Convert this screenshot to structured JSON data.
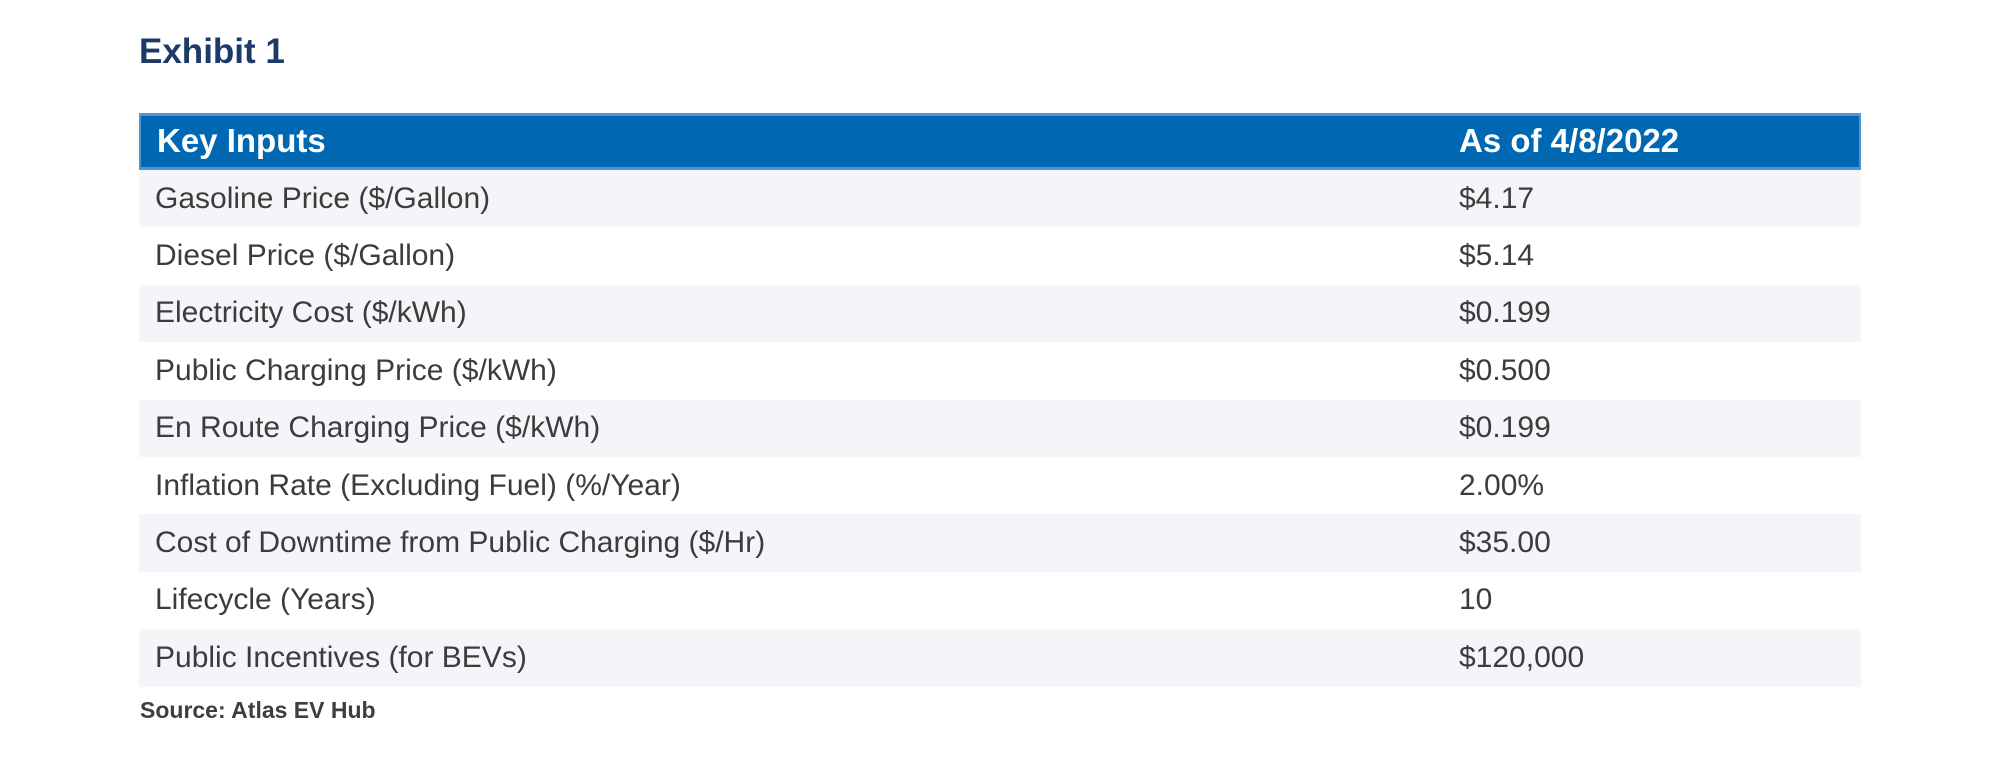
{
  "chart_data": {
    "type": "table",
    "title": "Exhibit 1",
    "columns": [
      "Key Inputs",
      "As of 4/8/2022"
    ],
    "rows": [
      [
        "Gasoline Price ($/Gallon)",
        "$4.17"
      ],
      [
        "Diesel Price ($/Gallon)",
        "$5.14"
      ],
      [
        "Electricity Cost ($/kWh)",
        "$0.199"
      ],
      [
        "Public Charging Price ($/kWh)",
        "$0.500"
      ],
      [
        "En Route Charging Price ($/kWh)",
        "$0.199"
      ],
      [
        "Inflation Rate (Excluding Fuel) (%/Year)",
        "2.00%"
      ],
      [
        "Cost of Downtime from Public Charging ($/Hr)",
        "$35.00"
      ],
      [
        "Lifecycle (Years)",
        "10"
      ],
      [
        "Public Incentives (for BEVs)",
        "$120,000"
      ]
    ],
    "source": "Source: Atlas EV Hub",
    "layout_hints": {
      "zebra_striping": "odd rows shaded, starting with first data row",
      "value_column_align": "left"
    }
  },
  "colors": {
    "header_background": "#0068b3",
    "header_border": "#4f96cc",
    "header_text": "#ffffff",
    "stripe_background": "#f3f5f8",
    "row_text": "#3c3c3c",
    "title_text": "#1b3a68",
    "source_text": "#3e3e3e",
    "page_background": "#ffffff"
  }
}
